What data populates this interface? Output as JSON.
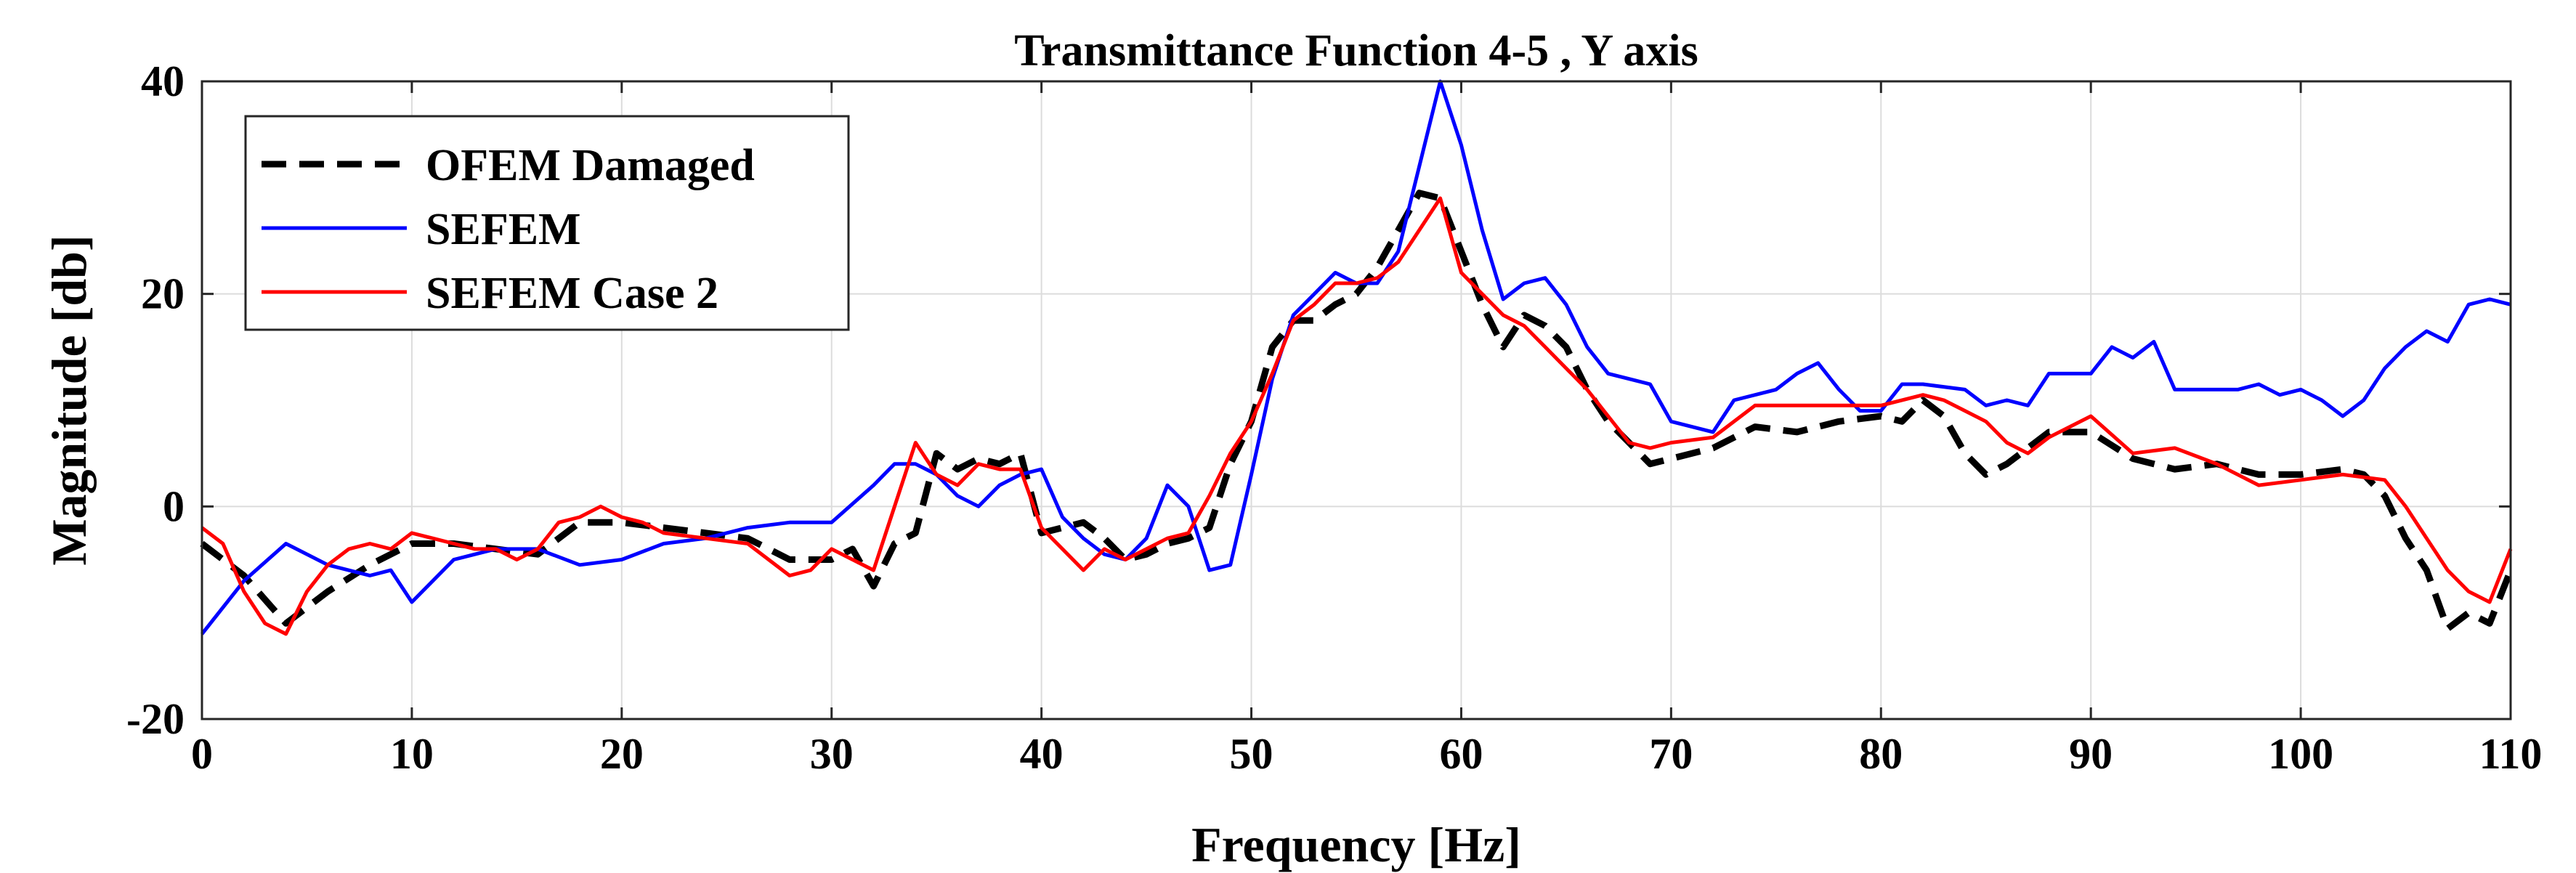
{
  "chart_data": {
    "type": "line",
    "title": "Transmittance Function 4-5 , Y axis",
    "xlabel": "Frequency [Hz]",
    "ylabel": "Magnitude [db]",
    "xlim": [
      0,
      110
    ],
    "ylim": [
      -20,
      40
    ],
    "xticks": [
      0,
      10,
      20,
      30,
      40,
      50,
      60,
      70,
      80,
      90,
      100,
      110
    ],
    "yticks": [
      -20,
      0,
      20,
      40
    ],
    "grid": true,
    "legend_position": "top-left",
    "series": [
      {
        "name": "OFEM Damaged",
        "color": "#000000",
        "style": "dashed",
        "x": [
          0,
          2,
          4,
          6,
          8,
          10,
          12,
          14,
          16,
          18,
          20,
          22,
          24,
          26,
          28,
          30,
          31,
          32,
          33,
          34,
          35,
          36,
          37,
          38,
          39,
          40,
          41,
          42,
          43,
          44,
          45,
          46,
          47,
          48,
          49,
          50,
          51,
          52,
          53,
          54,
          55,
          56,
          57,
          58,
          59,
          60,
          61,
          62,
          63,
          64,
          65,
          66,
          67,
          68,
          69,
          70,
          72,
          74,
          76,
          78,
          80,
          81,
          82,
          83,
          84,
          85,
          86,
          87,
          88,
          90,
          92,
          94,
          96,
          98,
          100,
          102,
          103,
          104,
          105,
          106,
          107,
          108,
          109,
          110
        ],
        "y": [
          -3.5,
          -6.5,
          -11,
          -8,
          -5.5,
          -3.5,
          -3.5,
          -4,
          -4.5,
          -1.5,
          -1.5,
          -2,
          -2.5,
          -3,
          -5,
          -5,
          -4,
          -7.5,
          -3.5,
          -2.5,
          5,
          3.5,
          4.5,
          4,
          5,
          -2.5,
          -2,
          -1.5,
          -3,
          -5,
          -4.5,
          -3.5,
          -3,
          -2,
          4,
          8,
          15,
          17.5,
          17.5,
          19,
          20,
          22.5,
          26,
          29.5,
          29,
          24,
          19,
          15,
          18,
          17,
          15,
          11,
          8,
          6,
          4,
          4.5,
          5.5,
          7.5,
          7,
          8,
          8.5,
          8,
          10,
          8.5,
          5,
          3,
          4,
          5.5,
          7,
          7,
          4.5,
          3.5,
          4,
          3,
          3,
          3.5,
          3,
          1,
          -3,
          -6,
          -11.5,
          -10,
          -11,
          -6
        ]
      },
      {
        "name": "SEFEM",
        "color": "#0000ff",
        "style": "solid",
        "x": [
          0,
          2,
          4,
          6,
          8,
          9,
          10,
          11,
          12,
          14,
          16,
          18,
          20,
          22,
          24,
          26,
          28,
          30,
          32,
          33,
          34,
          35,
          36,
          37,
          38,
          39,
          40,
          41,
          42,
          43,
          44,
          45,
          46,
          47,
          48,
          49,
          50,
          51,
          52,
          53,
          54,
          55,
          56,
          57,
          58,
          59,
          60,
          61,
          62,
          63,
          64,
          65,
          66,
          67,
          68,
          69,
          70,
          72,
          73,
          75,
          76,
          77,
          78,
          79,
          80,
          81,
          82,
          84,
          85,
          86,
          87,
          88,
          90,
          91,
          92,
          93,
          94,
          96,
          97,
          98,
          99,
          100,
          101,
          102,
          103,
          104,
          105,
          106,
          107,
          108,
          109,
          110
        ],
        "y": [
          -12,
          -7,
          -3.5,
          -5.5,
          -6.5,
          -6,
          -9,
          -7,
          -5,
          -4,
          -4,
          -5.5,
          -5,
          -3.5,
          -3,
          -2,
          -1.5,
          -1.5,
          2,
          4,
          4,
          3,
          1,
          0,
          2,
          3,
          3.5,
          -1,
          -3,
          -4.5,
          -5,
          -3,
          2,
          0,
          -6,
          -5.5,
          3,
          12,
          18,
          20,
          22,
          21,
          21,
          24,
          32,
          40,
          34,
          26,
          19.5,
          21,
          21.5,
          19,
          15,
          12.5,
          12,
          11.5,
          8,
          7,
          10,
          11,
          12.5,
          13.5,
          11,
          9,
          9,
          11.5,
          11.5,
          11,
          9.5,
          10,
          9.5,
          12.5,
          12.5,
          15,
          14,
          15.5,
          11,
          11,
          11,
          11.5,
          10.5,
          11,
          10,
          8.5,
          10,
          13,
          15,
          16.5,
          15.5,
          19,
          19.5,
          19
        ]
      },
      {
        "name": "SEFEM Case 2",
        "color": "#ff0000",
        "style": "solid",
        "x": [
          0,
          1,
          2,
          3,
          4,
          5,
          6,
          7,
          8,
          9,
          10,
          11,
          12,
          13,
          14,
          15,
          16,
          17,
          18,
          19,
          20,
          21,
          22,
          24,
          26,
          28,
          29,
          30,
          31,
          32,
          33,
          34,
          35,
          36,
          37,
          38,
          39,
          40,
          41,
          42,
          43,
          44,
          45,
          46,
          47,
          48,
          49,
          50,
          51,
          52,
          53,
          54,
          55,
          56,
          57,
          58,
          59,
          60,
          61,
          62,
          63,
          64,
          65,
          66,
          67,
          68,
          69,
          70,
          72,
          74,
          76,
          78,
          80,
          82,
          83,
          84,
          85,
          86,
          87,
          88,
          90,
          92,
          94,
          96,
          98,
          100,
          102,
          104,
          105,
          106,
          107,
          108,
          109,
          110
        ],
        "y": [
          -2,
          -3.5,
          -8,
          -11,
          -12,
          -8,
          -5.5,
          -4,
          -3.5,
          -4,
          -2.5,
          -3,
          -3.5,
          -4,
          -4,
          -5,
          -4,
          -1.5,
          -1,
          0,
          -1,
          -1.5,
          -2.5,
          -3,
          -3.5,
          -6.5,
          -6,
          -4,
          -5,
          -6,
          0,
          6,
          3,
          2,
          4,
          3.5,
          3.5,
          -2,
          -4,
          -6,
          -4,
          -5,
          -4,
          -3,
          -2.5,
          1,
          5,
          8,
          12.5,
          17.5,
          19,
          21,
          21,
          21.5,
          23,
          26,
          29,
          22,
          20,
          18,
          17,
          15,
          13,
          11,
          8.5,
          6,
          5.5,
          6,
          6.5,
          9.5,
          9.5,
          9.5,
          9.5,
          10.5,
          10,
          9,
          8,
          6,
          5,
          6.5,
          8.5,
          5,
          5.5,
          4,
          2,
          2.5,
          3,
          2.5,
          0,
          -3,
          -6,
          -8,
          -9,
          -4
        ]
      }
    ]
  }
}
